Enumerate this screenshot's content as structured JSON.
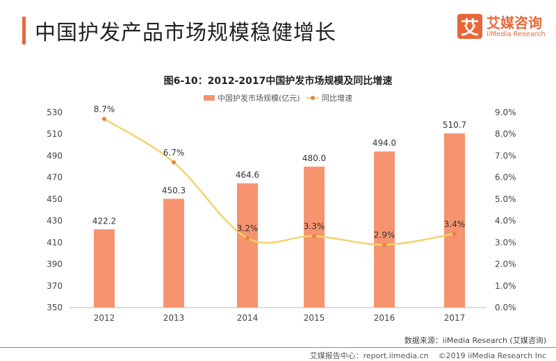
{
  "header": {
    "title": "中国护发产品市场规模稳健增长",
    "logo_mark": "艾",
    "logo_cn": "艾媒咨询",
    "logo_en": "iiMedia Research"
  },
  "chart_data": {
    "type": "bar+line",
    "title": "图6-10：2012-2017中国护发市场规模及同比增速",
    "categories": [
      "2012",
      "2013",
      "2014",
      "2015",
      "2016",
      "2017"
    ],
    "series": [
      {
        "name": "中国护发市场规模(亿元)",
        "type": "bar",
        "axis": "left",
        "values": [
          422.2,
          450.3,
          464.6,
          480.0,
          494.0,
          510.7
        ],
        "labels": [
          "422.2",
          "450.3",
          "464.6",
          "480.0",
          "494.0",
          "510.7"
        ],
        "color": "#f5946f"
      },
      {
        "name": "同比增速",
        "type": "line",
        "axis": "right",
        "values": [
          8.7,
          6.7,
          3.2,
          3.3,
          2.9,
          3.4
        ],
        "labels": [
          "8.7%",
          "6.7%",
          "3.2%",
          "3.3%",
          "2.9%",
          "3.4%"
        ],
        "color": "#f3d26a",
        "marker_color": "#e8823a"
      }
    ],
    "y_left": {
      "range": [
        350,
        530
      ],
      "ticks": [
        "350",
        "370",
        "390",
        "410",
        "430",
        "450",
        "470",
        "490",
        "510",
        "530"
      ]
    },
    "y_right": {
      "range": [
        0,
        9
      ],
      "ticks": [
        "0.0%",
        "1.0%",
        "2.0%",
        "3.0%",
        "4.0%",
        "5.0%",
        "6.0%",
        "7.0%",
        "8.0%",
        "9.0%"
      ]
    },
    "grid": false,
    "legend": "top-center"
  },
  "footer": {
    "source": "数据来源：iiMedia Research (艾媒咨询)",
    "report": "艾媒报告中心：report.iimedia.cn",
    "copyright": "©2019  iiMedia Research  Inc"
  }
}
